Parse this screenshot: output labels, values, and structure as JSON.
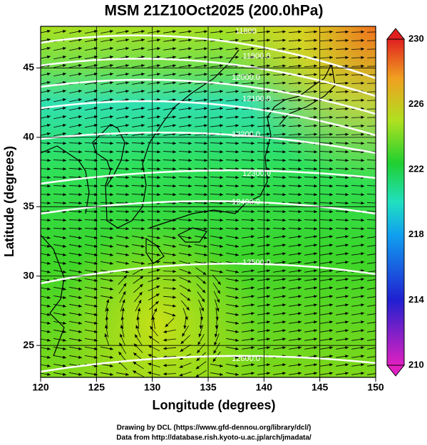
{
  "chart_data": {
    "type": "map",
    "title": "MSM 21Z10Oct2025 (200.0hPa)",
    "x_label": "Longitude (degrees)",
    "y_label": "Latitude  (degrees)",
    "xlim": [
      120,
      150
    ],
    "xticks": [
      120,
      125,
      130,
      135,
      140,
      145,
      150
    ],
    "ylim": [
      22.7,
      48.0
    ],
    "yticks": [
      25,
      30,
      35,
      40,
      45
    ],
    "colorbar": {
      "lim": [
        210,
        230
      ],
      "ticks": [
        210,
        214,
        218,
        222,
        226,
        230
      ]
    },
    "contours": [
      {
        "value": 11800,
        "label": "11800"
      },
      {
        "value": 11900,
        "label": "11900.0"
      },
      {
        "value": 12000,
        "label": "12000.0"
      },
      {
        "value": 12100,
        "label": "12100.0"
      },
      {
        "value": 12200,
        "label": "12200.0"
      },
      {
        "value": 12300,
        "label": "12300.0"
      },
      {
        "value": 12400,
        "label": "12400.0"
      },
      {
        "value": 12500,
        "label": "12500.0"
      },
      {
        "value": 12600,
        "label": "12600.0"
      }
    ],
    "footer": [
      "Drawing by DCL (https://www.gfd-dennou.org/library/dcl/)",
      "Data from http://database.rish.kyoto-u.ac.jp/arch/jmadata/"
    ]
  }
}
